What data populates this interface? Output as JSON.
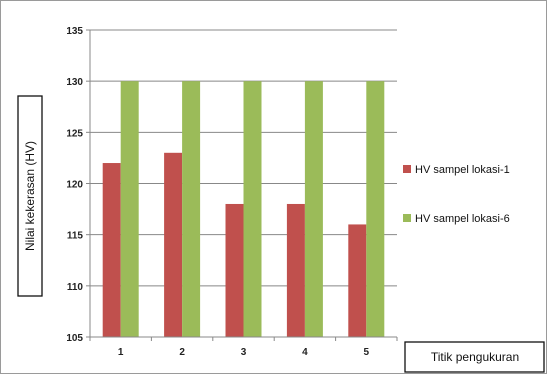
{
  "chart_data": {
    "type": "bar",
    "title": "",
    "xlabel": "Titik pengukuran",
    "ylabel": "Nilai kekerasan (HV)",
    "categories": [
      "1",
      "2",
      "3",
      "4",
      "5"
    ],
    "ylim": [
      105,
      135
    ],
    "yticks": [
      105,
      110,
      115,
      120,
      125,
      130,
      135
    ],
    "grid": true,
    "legend_position": "right",
    "series": [
      {
        "name": "HV sampel lokasi-1",
        "color": "#c0504d",
        "values": [
          122,
          123,
          118,
          118,
          116
        ]
      },
      {
        "name": "HV sampel lokasi-6",
        "color": "#9bbb59",
        "values": [
          130,
          130,
          130,
          130,
          130
        ]
      }
    ]
  }
}
